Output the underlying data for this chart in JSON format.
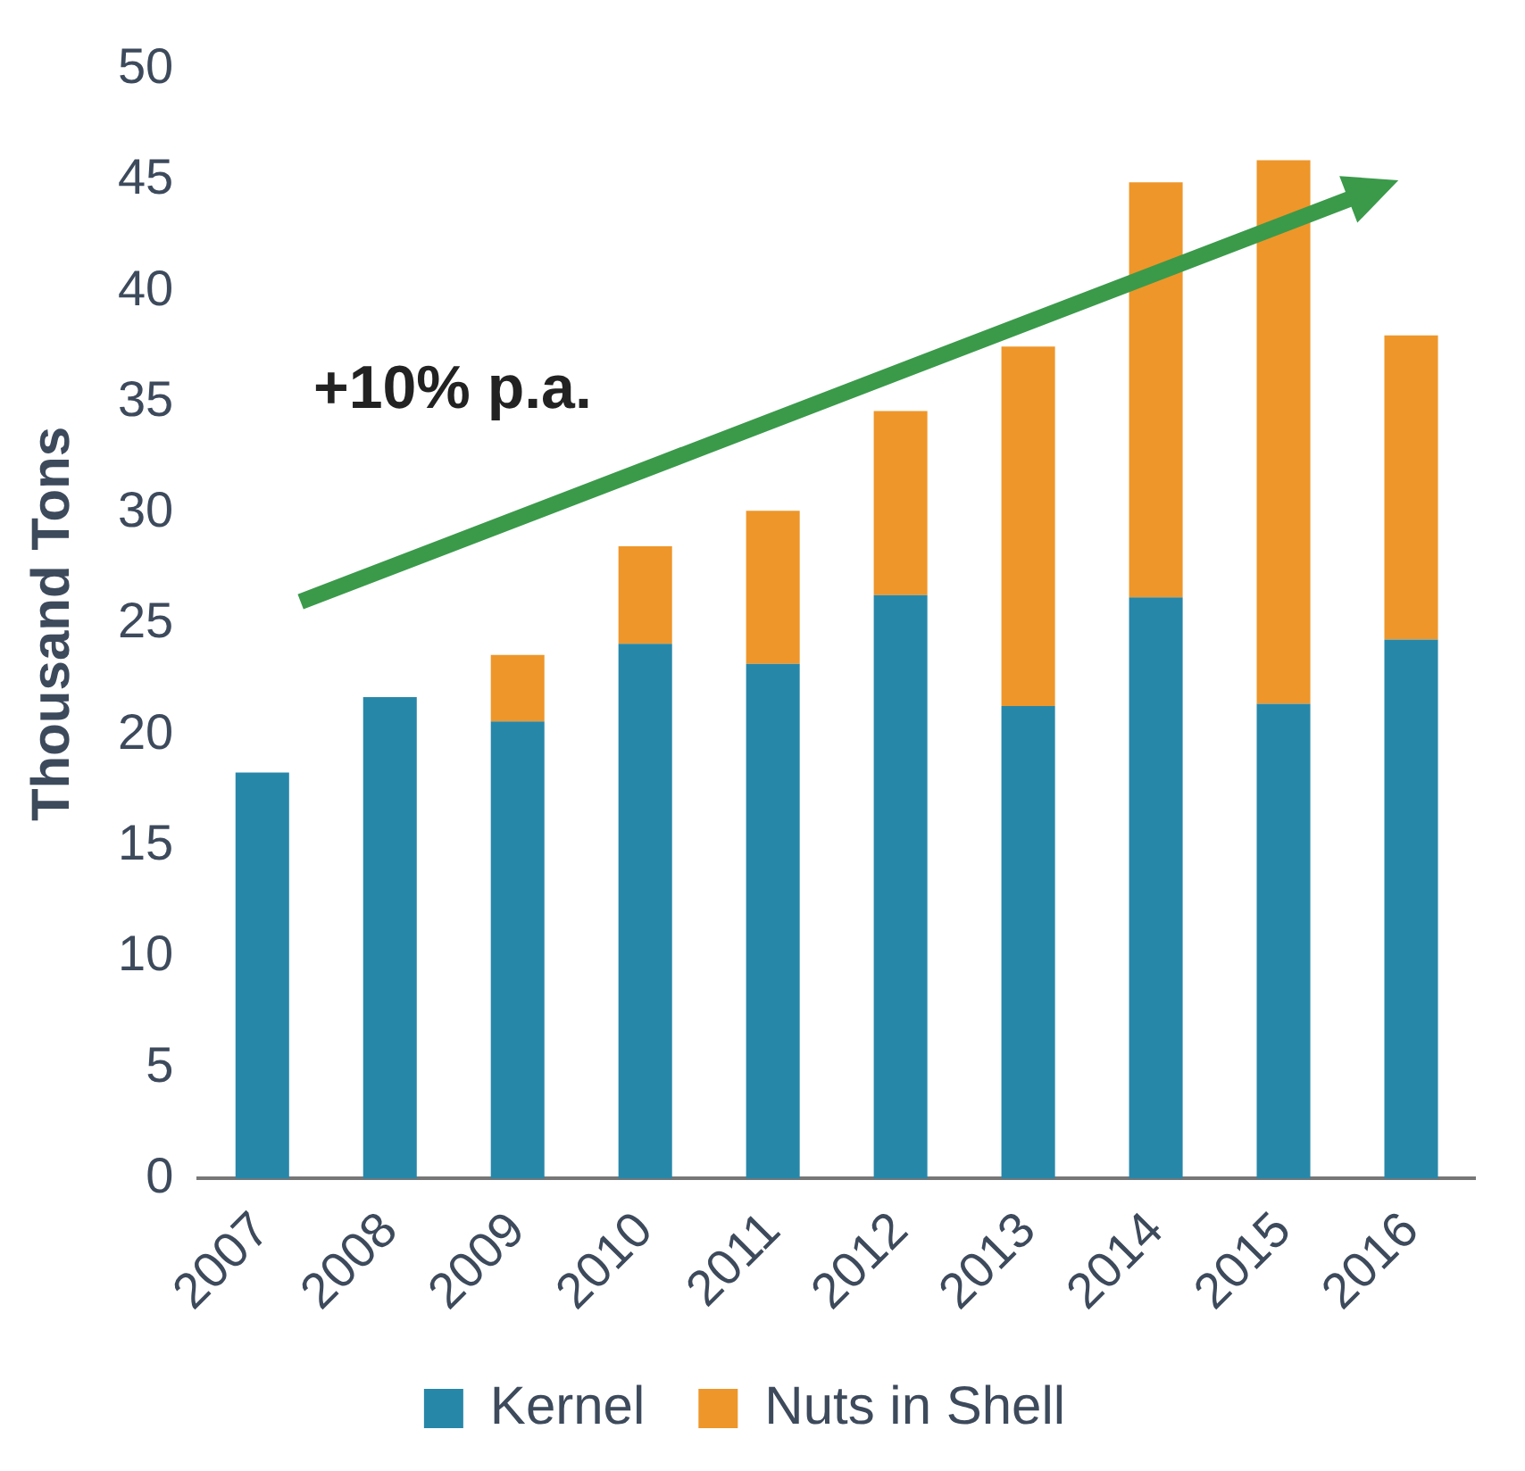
{
  "chart_data": {
    "type": "bar",
    "ylabel": "Thousand Tons",
    "categories": [
      "2007",
      "2008",
      "2009",
      "2010",
      "2011",
      "2012",
      "2013",
      "2014",
      "2015",
      "2016"
    ],
    "series": [
      {
        "name": "Kernel",
        "color": "#2787a9",
        "values": [
          18.3,
          21.7,
          20.6,
          24.1,
          23.2,
          26.3,
          21.3,
          26.2,
          21.4,
          24.3
        ]
      },
      {
        "name": "Nuts in Shell",
        "color": "#ee962a",
        "values": [
          null,
          null,
          3.0,
          4.4,
          6.9,
          8.3,
          16.2,
          18.7,
          24.5,
          13.7
        ]
      }
    ],
    "stacked": true,
    "ylim": [
      0,
      50
    ],
    "yticks": [
      0,
      5,
      10,
      15,
      20,
      25,
      30,
      35,
      40,
      45,
      50
    ],
    "grid": false,
    "legend": "bottom",
    "annotations": [
      "+10% p.a."
    ]
  }
}
